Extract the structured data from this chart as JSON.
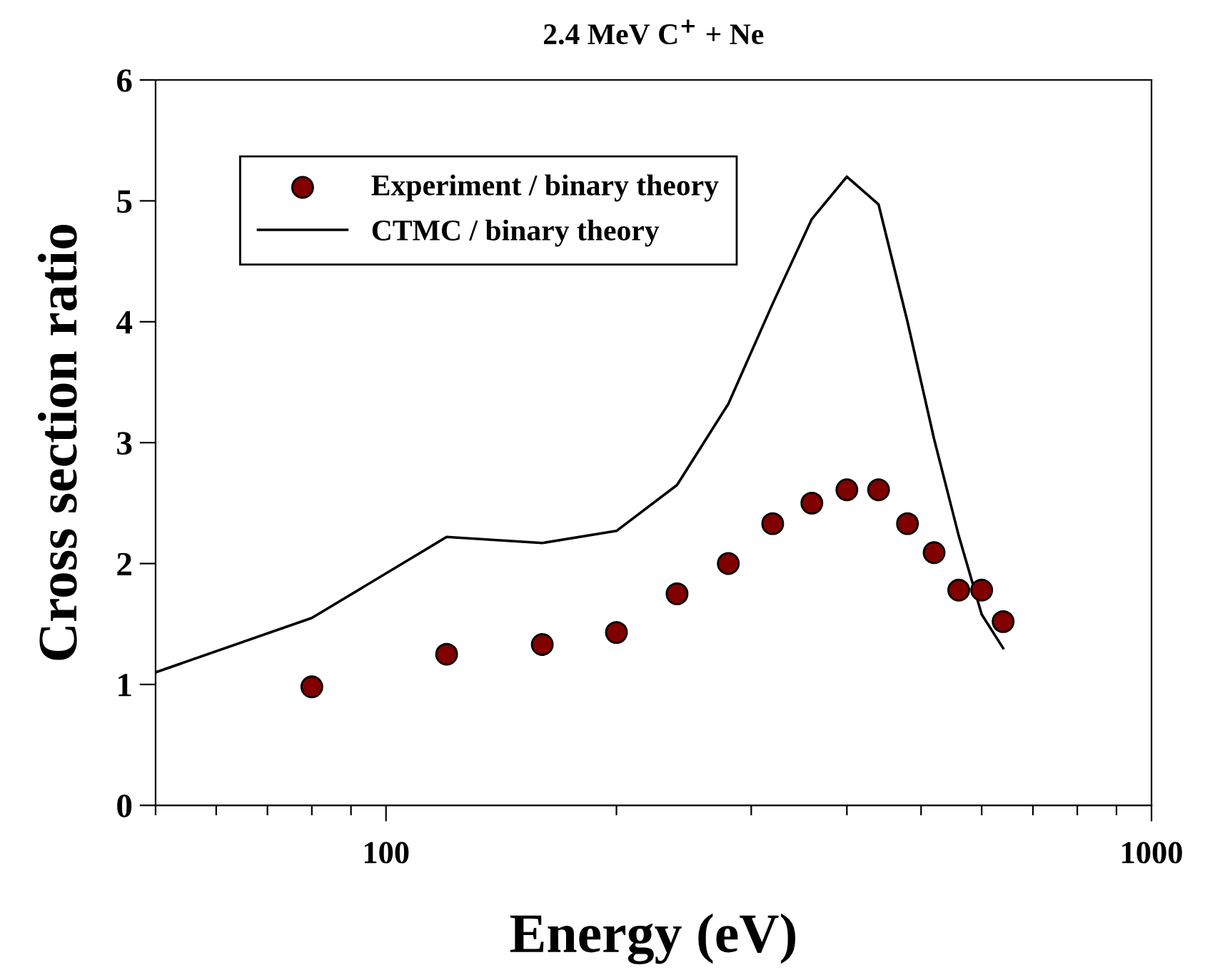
{
  "chart_data": {
    "type": "scatter",
    "title": "2.4 MeV C$^{+}$ + Ne",
    "xlabel": "Energy (eV)",
    "ylabel": "Cross section ratio",
    "log": "x",
    "xlim": [
      50,
      1000
    ],
    "xticks": [
      {
        "value": 50,
        "label": null
      },
      {
        "value": 60,
        "label": null
      },
      {
        "value": 70,
        "label": null
      },
      {
        "value": 80,
        "label": null
      },
      {
        "value": 90,
        "label": null
      },
      100,
      {
        "value": 200,
        "label": null
      },
      {
        "value": 300,
        "label": null
      },
      {
        "value": 400,
        "label": null
      },
      {
        "value": 500,
        "label": null
      },
      {
        "value": 600,
        "label": null
      },
      {
        "value": 700,
        "label": null
      },
      {
        "value": 800,
        "label": null
      },
      {
        "value": 900,
        "label": null
      },
      1000
    ],
    "ylim": [
      0,
      6
    ],
    "yticks": [
      0,
      1,
      2,
      3,
      4,
      5,
      6
    ],
    "grid": false,
    "legend": "top left",
    "series": [
      {
        "name": "Experiment / binary theory",
        "marker": "circle",
        "color": "#800000",
        "x": [
          80,
          120,
          160,
          200,
          240,
          280,
          320,
          360,
          400,
          440,
          480,
          520,
          560,
          600,
          640
        ],
        "values": [
          0.98,
          1.25,
          1.33,
          1.43,
          1.75,
          2.0,
          2.33,
          2.5,
          2.61,
          2.61,
          2.33,
          2.09,
          1.78,
          1.78,
          1.52
        ]
      },
      {
        "name": "CTMC / binary theory",
        "type": "line",
        "marker": "none",
        "line_style": "solid",
        "color": "#000000",
        "x": [
          50,
          80,
          120,
          160,
          200,
          240,
          280,
          320,
          360,
          400,
          440,
          480,
          520,
          560,
          600,
          640
        ],
        "values": [
          1.1,
          1.55,
          2.22,
          2.17,
          2.27,
          2.65,
          3.32,
          4.15,
          4.85,
          5.2,
          4.97,
          4.0,
          3.03,
          2.23,
          1.58,
          1.3
        ]
      }
    ]
  }
}
